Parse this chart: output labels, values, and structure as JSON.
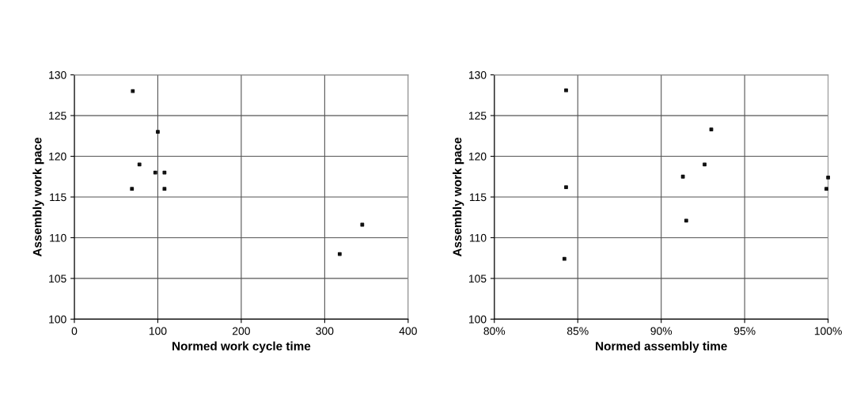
{
  "chart_data": [
    {
      "type": "scatter",
      "xlabel": "Normed work cycle time",
      "ylabel": "Assembly work pace",
      "x": [
        70,
        100,
        78,
        97,
        108,
        69,
        108,
        318,
        345
      ],
      "values": [
        128,
        123,
        119,
        118,
        118,
        116,
        116,
        108,
        111.6
      ],
      "color": "#111111",
      "marker": "square",
      "xlim": [
        0,
        400
      ],
      "xticks": [
        0,
        100,
        200,
        300,
        400
      ],
      "ylim": [
        100,
        130
      ],
      "yticks": [
        100,
        105,
        110,
        115,
        120,
        125,
        130
      ],
      "grid": true
    },
    {
      "type": "scatter",
      "xlabel": "Normed assembly time",
      "ylabel": "Assembly work pace",
      "x": [
        84.3,
        93,
        92.6,
        91.3,
        84.3,
        91.5,
        84.2,
        99.9,
        100
      ],
      "values": [
        128.1,
        123.3,
        119,
        117.5,
        116.2,
        112.1,
        107.4,
        116,
        117.4
      ],
      "color": "#111111",
      "marker": "square",
      "xlim": [
        80,
        100
      ],
      "xticks": [
        {
          "value": 80,
          "label": "80%"
        },
        {
          "value": 85,
          "label": "85%"
        },
        {
          "value": 90,
          "label": "90%"
        },
        {
          "value": 95,
          "label": "95%"
        },
        {
          "value": 100,
          "label": "100%"
        }
      ],
      "ylim": [
        100,
        130
      ],
      "yticks": [
        100,
        105,
        110,
        115,
        120,
        125,
        130
      ],
      "grid": true
    }
  ]
}
